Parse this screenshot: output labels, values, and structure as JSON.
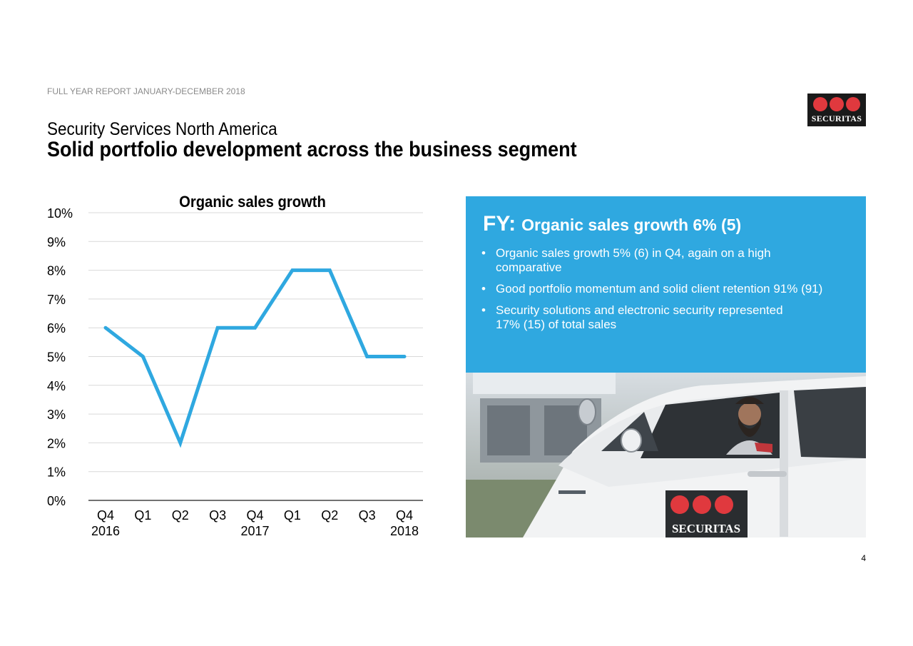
{
  "header": {
    "report_label": "FULL YEAR REPORT JANUARY-DECEMBER 2018",
    "segment": "Security Services North America",
    "headline": "Solid portfolio development across the business segment"
  },
  "logo": {
    "wordmark": "SECURITAS",
    "dot_color": "#e0393e",
    "background": "#1a1a1a"
  },
  "chart_data": {
    "type": "line",
    "title": "Organic sales growth",
    "categories": [
      "Q4",
      "Q1",
      "Q2",
      "Q3",
      "Q4",
      "Q1",
      "Q2",
      "Q3",
      "Q4"
    ],
    "year_labels": [
      "2016",
      "2017",
      "2018"
    ],
    "series": [
      {
        "values": [
          6,
          5,
          2,
          6,
          6,
          8,
          8,
          5,
          5
        ]
      }
    ],
    "yticks": [
      "0%",
      "1%",
      "2%",
      "3%",
      "4%",
      "5%",
      "6%",
      "7%",
      "8%",
      "9%",
      "10%"
    ],
    "ylim": [
      0,
      10
    ],
    "grid": true,
    "line_color": "#2fa8e0"
  },
  "panel": {
    "background": "#2fa8e0",
    "fy_label": "FY:",
    "fy_text": "Organic sales growth 6% (5)",
    "bullet_char": "•",
    "bullets": [
      {
        "line1": "Organic sales growth 5% (6) in Q4, again on a high",
        "line2": "comparative"
      },
      {
        "line1": "Good portfolio momentum and solid client retention 91% (91)",
        "line2": ""
      },
      {
        "line1": "Security solutions and electronic security represented",
        "line2": "17% (15) of total sales"
      }
    ]
  },
  "photo": {
    "vehicle_logo_text": "SECURITAS"
  },
  "page_number": "4"
}
